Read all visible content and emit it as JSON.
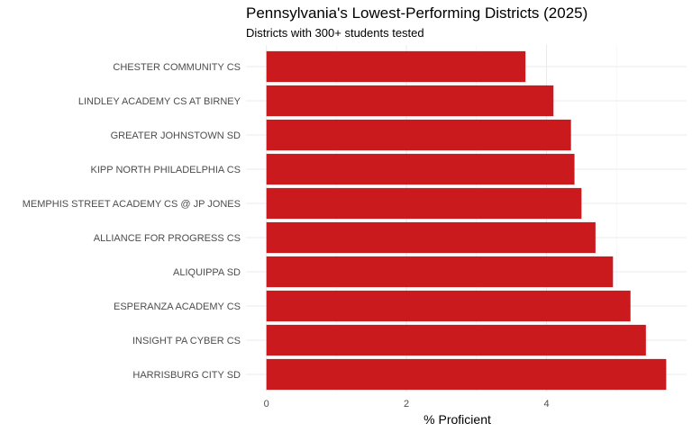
{
  "chart_data": {
    "type": "bar",
    "orientation": "horizontal",
    "title": "Pennsylvania's Lowest-Performing Districts (2025)",
    "subtitle": "Districts with 300+ students tested",
    "xlabel": "% Proficient",
    "ylabel": "",
    "categories": [
      "CHESTER COMMUNITY CS",
      "LINDLEY ACADEMY CS AT BIRNEY",
      "GREATER JOHNSTOWN SD",
      "KIPP NORTH PHILADELPHIA CS",
      "MEMPHIS STREET ACADEMY CS @ JP JONES",
      "ALLIANCE FOR PROGRESS CS",
      "ALIQUIPPA SD",
      "ESPERANZA ACADEMY CS",
      "INSIGHT PA CYBER CS",
      "HARRISBURG CITY SD"
    ],
    "values": [
      3.7,
      4.1,
      4.35,
      4.4,
      4.5,
      4.7,
      4.95,
      5.2,
      5.42,
      5.71
    ],
    "xlim": [
      -0.29,
      6.0
    ],
    "xticks": [
      "0",
      "2",
      "4"
    ],
    "xtick_values": [
      0,
      2,
      4
    ],
    "grid": true,
    "bar_color": "#CB1A1E"
  }
}
